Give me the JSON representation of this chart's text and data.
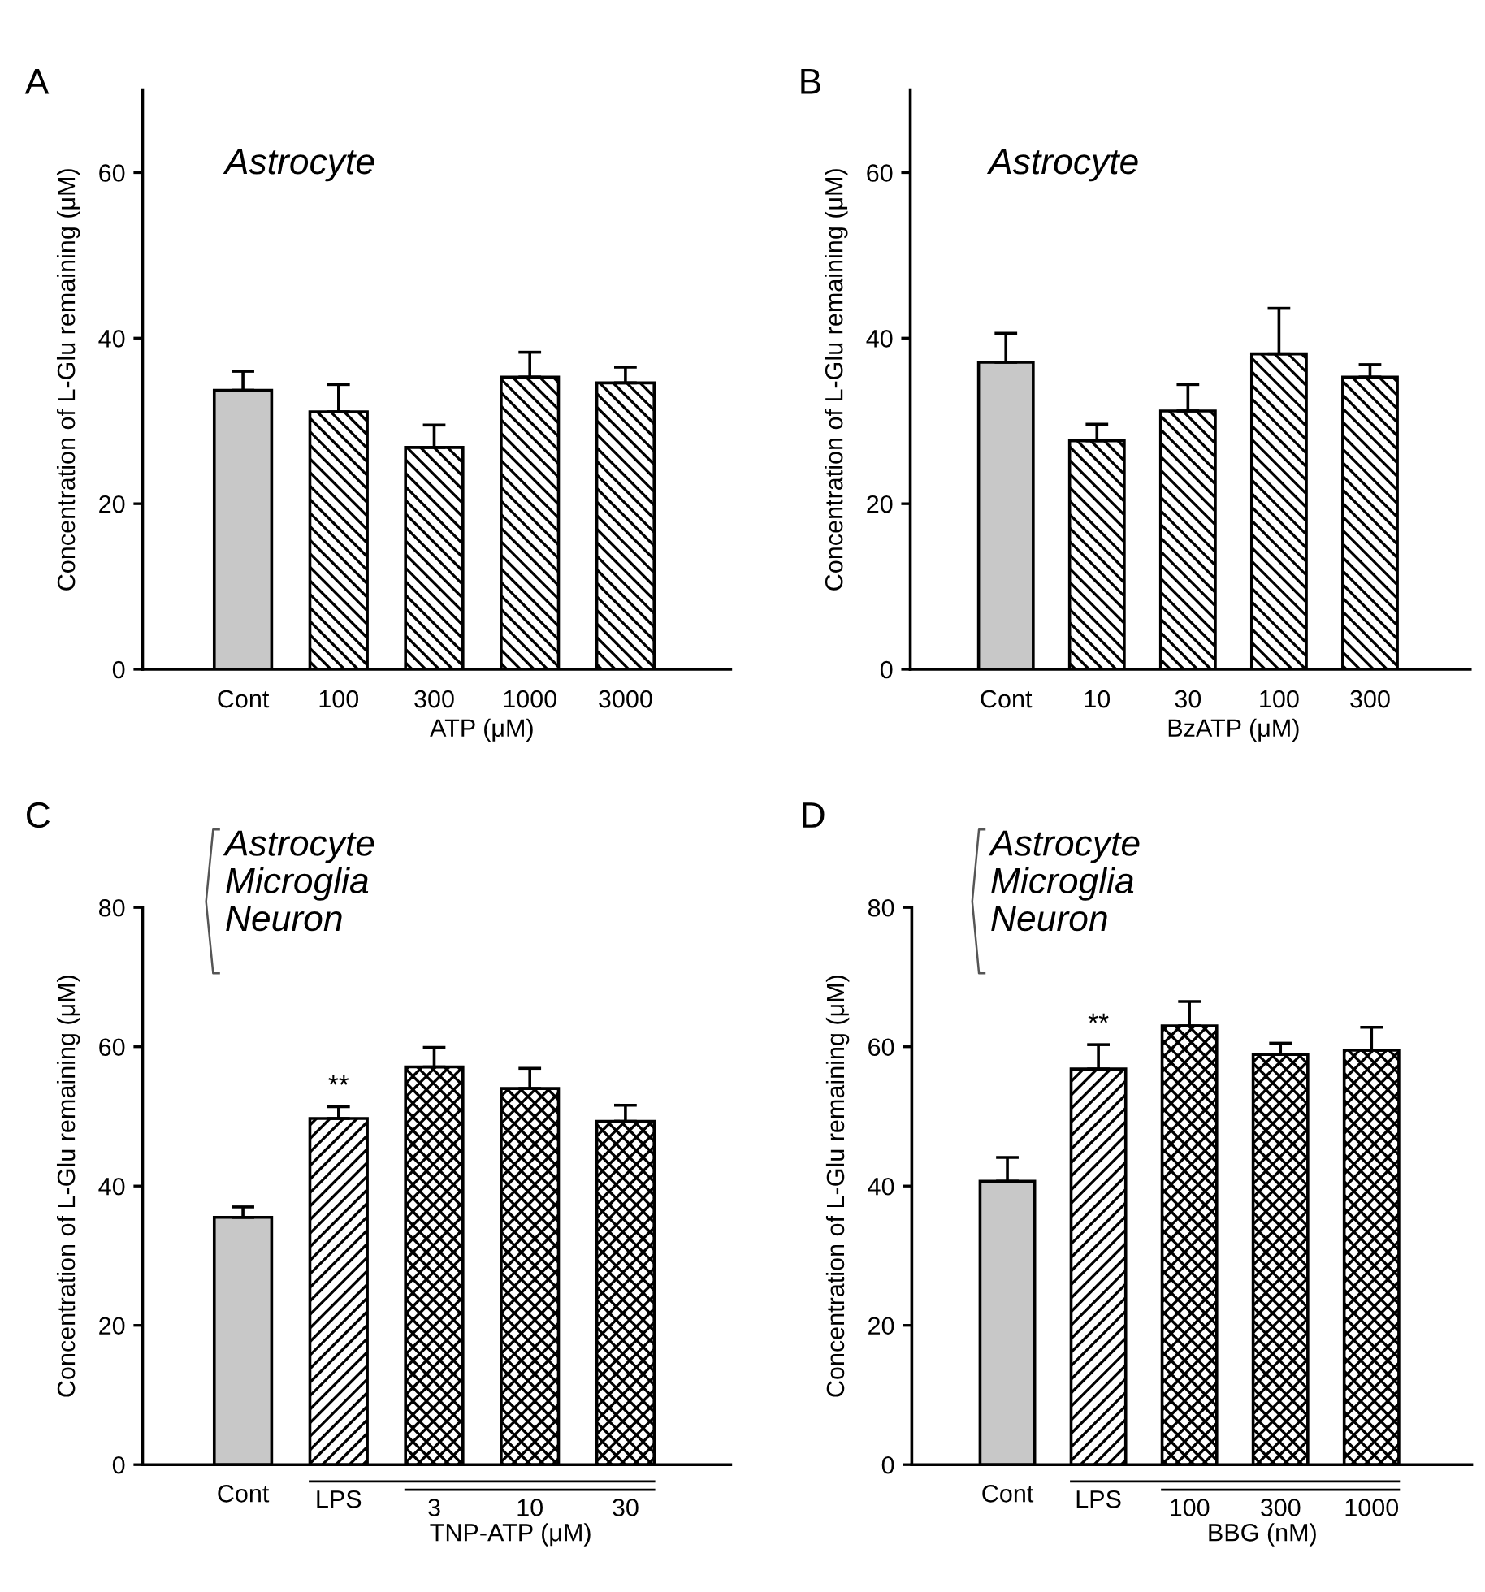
{
  "chart_data": [
    {
      "type": "bar",
      "title": "A",
      "xlabel": "ATP (μM)",
      "ylabel": "Concentration of L-Glu remaining (μM)",
      "categories": [
        "Cont",
        "100",
        "300",
        "1000",
        "3000"
      ],
      "series": [
        {
          "color": "#c8c8c8",
          "values": [
            33.7,
            null,
            null,
            null,
            null
          ],
          "errors": [
            [
              33.7,
              36.0
            ],
            null,
            null,
            null,
            null
          ]
        },
        {
          "color": "#000000",
          "values": [
            null,
            31.1,
            26.8,
            35.3,
            34.6
          ],
          "errors": [
            null,
            [
              31.1,
              34.4
            ],
            [
              26.8,
              29.5
            ],
            [
              35.3,
              38.3
            ],
            [
              34.6,
              36.5
            ]
          ]
        }
      ],
      "ylim": [
        0,
        70
      ],
      "yticks": [
        0,
        20,
        40,
        60
      ],
      "annotations": [
        "Astrocyte"
      ]
    },
    {
      "type": "bar",
      "title": "B",
      "xlabel": "BzATP (μM)",
      "ylabel": "Concentration of L-Glu remaining (μM)",
      "categories": [
        "Cont",
        "10",
        "30",
        "100",
        "300"
      ],
      "series": [
        {
          "color": "#c8c8c8",
          "values": [
            37.1,
            null,
            null,
            null,
            null
          ],
          "errors": [
            [
              37.1,
              40.6
            ],
            null,
            null,
            null,
            null
          ]
        },
        {
          "color": "#000000",
          "values": [
            null,
            27.6,
            31.2,
            38.1,
            35.3
          ],
          "errors": [
            null,
            [
              27.6,
              29.6
            ],
            [
              31.2,
              34.4
            ],
            [
              38.1,
              43.6
            ],
            [
              35.3,
              36.8
            ]
          ]
        }
      ],
      "ylim": [
        0,
        70
      ],
      "yticks": [
        0,
        20,
        40,
        60
      ],
      "annotations": [
        "Astrocyte"
      ]
    },
    {
      "type": "bar",
      "title": "C",
      "xlabel": "TNP-ATP (μM)",
      "ylabel": "Concentration of L-Glu remaining (μM)",
      "categories": [
        "Cont",
        "LPS",
        "3",
        "10",
        "30"
      ],
      "series": [
        {
          "color": "#c8c8c8",
          "values": [
            35.5,
            null,
            null,
            null,
            null
          ],
          "errors": [
            [
              35.5,
              37.0
            ],
            null,
            null,
            null,
            null
          ]
        },
        {
          "color": "#000000",
          "values": [
            null,
            49.7,
            null,
            null,
            null
          ],
          "errors": [
            null,
            [
              49.7,
              51.4
            ],
            null,
            null,
            null
          ]
        },
        {
          "color": "#000000",
          "values": [
            null,
            null,
            57.1,
            54.0,
            49.3
          ],
          "errors": [
            null,
            null,
            [
              57.1,
              59.9
            ],
            [
              54.0,
              56.9
            ],
            [
              49.3,
              51.6
            ]
          ]
        }
      ],
      "ylim": [
        0,
        80
      ],
      "yticks": [
        0,
        20,
        40,
        60,
        80
      ],
      "annotations": [
        "Astrocyte\nMicroglia\nNeuron",
        "**"
      ]
    },
    {
      "type": "bar",
      "title": "D",
      "xlabel": "BBG (nM)",
      "ylabel": "Concentration of L-Glu remaining (μM)",
      "categories": [
        "Cont",
        "LPS",
        "100",
        "300",
        "1000"
      ],
      "series": [
        {
          "color": "#c8c8c8",
          "values": [
            40.7,
            null,
            null,
            null,
            null
          ],
          "errors": [
            [
              40.7,
              44.1
            ],
            null,
            null,
            null,
            null
          ]
        },
        {
          "color": "#000000",
          "values": [
            null,
            56.8,
            null,
            null,
            null
          ],
          "errors": [
            null,
            [
              56.8,
              60.3
            ],
            null,
            null,
            null
          ]
        },
        {
          "color": "#000000",
          "values": [
            null,
            null,
            63.0,
            58.9,
            59.5
          ],
          "errors": [
            null,
            null,
            [
              63.0,
              66.5
            ],
            [
              58.9,
              60.5
            ],
            [
              59.5,
              62.8
            ]
          ]
        }
      ],
      "ylim": [
        0,
        80
      ],
      "yticks": [
        0,
        20,
        40,
        60,
        80
      ],
      "annotations": [
        "Astrocyte\nMicroglia\nNeuron",
        "**"
      ]
    }
  ]
}
